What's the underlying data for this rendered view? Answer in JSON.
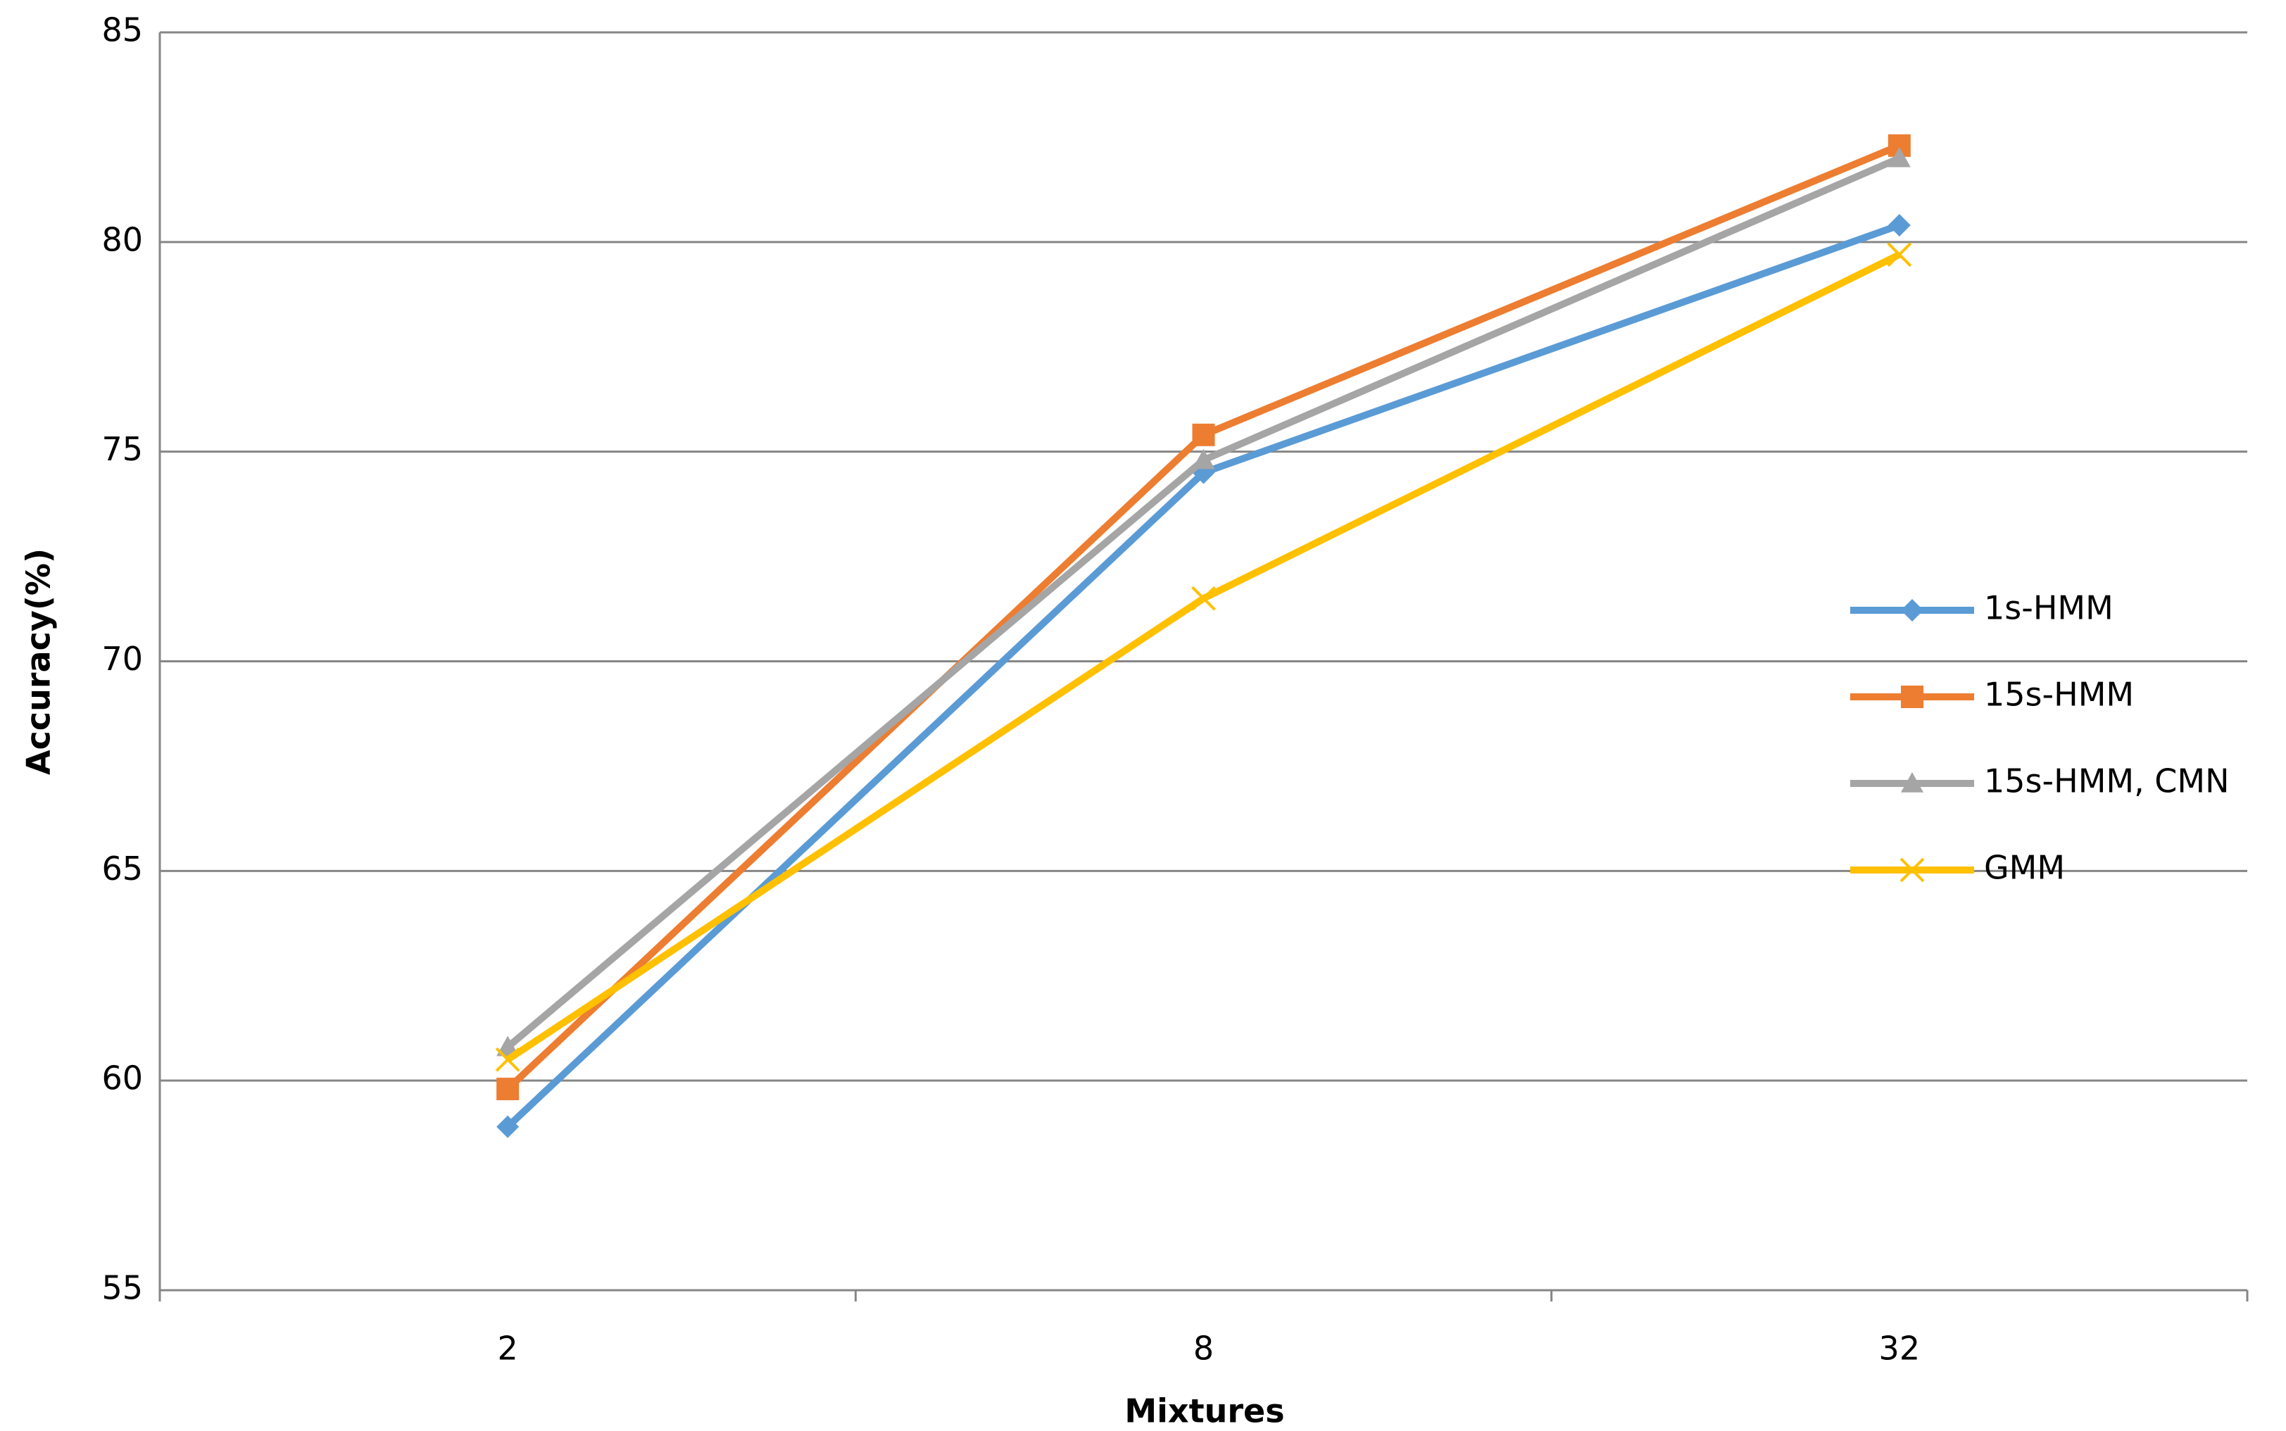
{
  "chart_data": {
    "type": "line",
    "x_label": "Mixtures",
    "y_label": "Accuracy(%)",
    "categories": [
      "2",
      "8",
      "32"
    ],
    "series": [
      {
        "name": "1s-HMM",
        "color": "#5b9bd5",
        "marker": "diamond",
        "values": [
          58.9,
          74.5,
          80.4
        ]
      },
      {
        "name": "15s-HMM",
        "color": "#ed7d31",
        "marker": "square",
        "values": [
          59.8,
          75.4,
          82.3
        ]
      },
      {
        "name": "15s-HMM, CMN",
        "color": "#a5a5a5",
        "marker": "triangle",
        "values": [
          60.8,
          74.8,
          82.0
        ]
      },
      {
        "name": "GMM",
        "color": "#ffc000",
        "marker": "x",
        "values": [
          60.5,
          71.5,
          79.7
        ]
      }
    ],
    "ylim": [
      55,
      85
    ],
    "yticks": [
      55,
      60,
      65,
      70,
      75,
      80,
      85
    ],
    "grid": true,
    "legend": "right"
  }
}
